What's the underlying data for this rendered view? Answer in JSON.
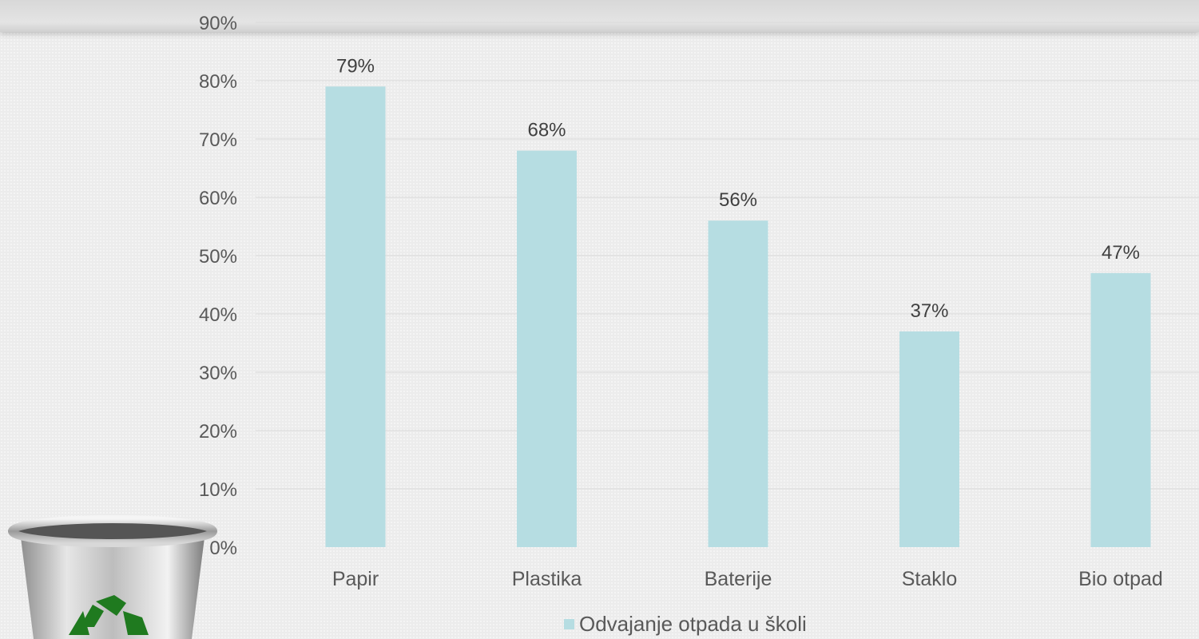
{
  "chart_data": {
    "type": "bar",
    "categories": [
      "Papir",
      "Plastika",
      "Baterije",
      "Staklo",
      "Bio otpad"
    ],
    "series": [
      {
        "name": "Odvajanje otpada u školi",
        "values": [
          79,
          68,
          56,
          37,
          47
        ],
        "color": "#b6dde2"
      }
    ],
    "data_labels": [
      "79%",
      "68%",
      "56%",
      "37%",
      "47%"
    ],
    "y_ticks": [
      "0%",
      "10%",
      "20%",
      "30%",
      "40%",
      "50%",
      "60%",
      "70%",
      "80%",
      "90%"
    ],
    "ylim": [
      0,
      90
    ],
    "grid": true,
    "legend_position": "bottom",
    "title": "",
    "xlabel": "",
    "ylabel": ""
  },
  "legend": {
    "label": "Odvajanje otpada u školi"
  },
  "decoration": {
    "icon": "recycle-bin-icon",
    "recycle_color": "#1f7a1f"
  }
}
